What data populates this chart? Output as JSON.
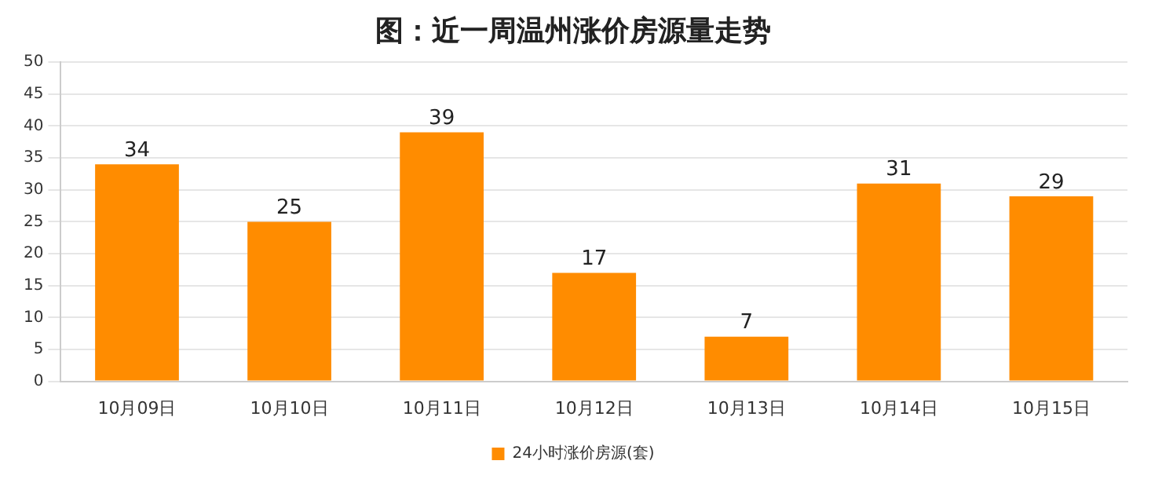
{
  "chart_data": {
    "type": "bar",
    "title": "图：近一周温州涨价房源量走势",
    "categories": [
      "10月09日",
      "10月10日",
      "10月11日",
      "10月12日",
      "10月13日",
      "10月14日",
      "10月15日"
    ],
    "series": [
      {
        "name": "24小时涨价房源(套)",
        "color": "#ff8c00",
        "values": [
          34,
          25,
          39,
          17,
          7,
          31,
          29
        ]
      }
    ],
    "ylim": [
      0,
      50
    ],
    "yticks": [
      0,
      5,
      10,
      15,
      20,
      25,
      30,
      35,
      40,
      45,
      50
    ],
    "grid": "y",
    "legend": "bottom",
    "data_labels": true
  }
}
